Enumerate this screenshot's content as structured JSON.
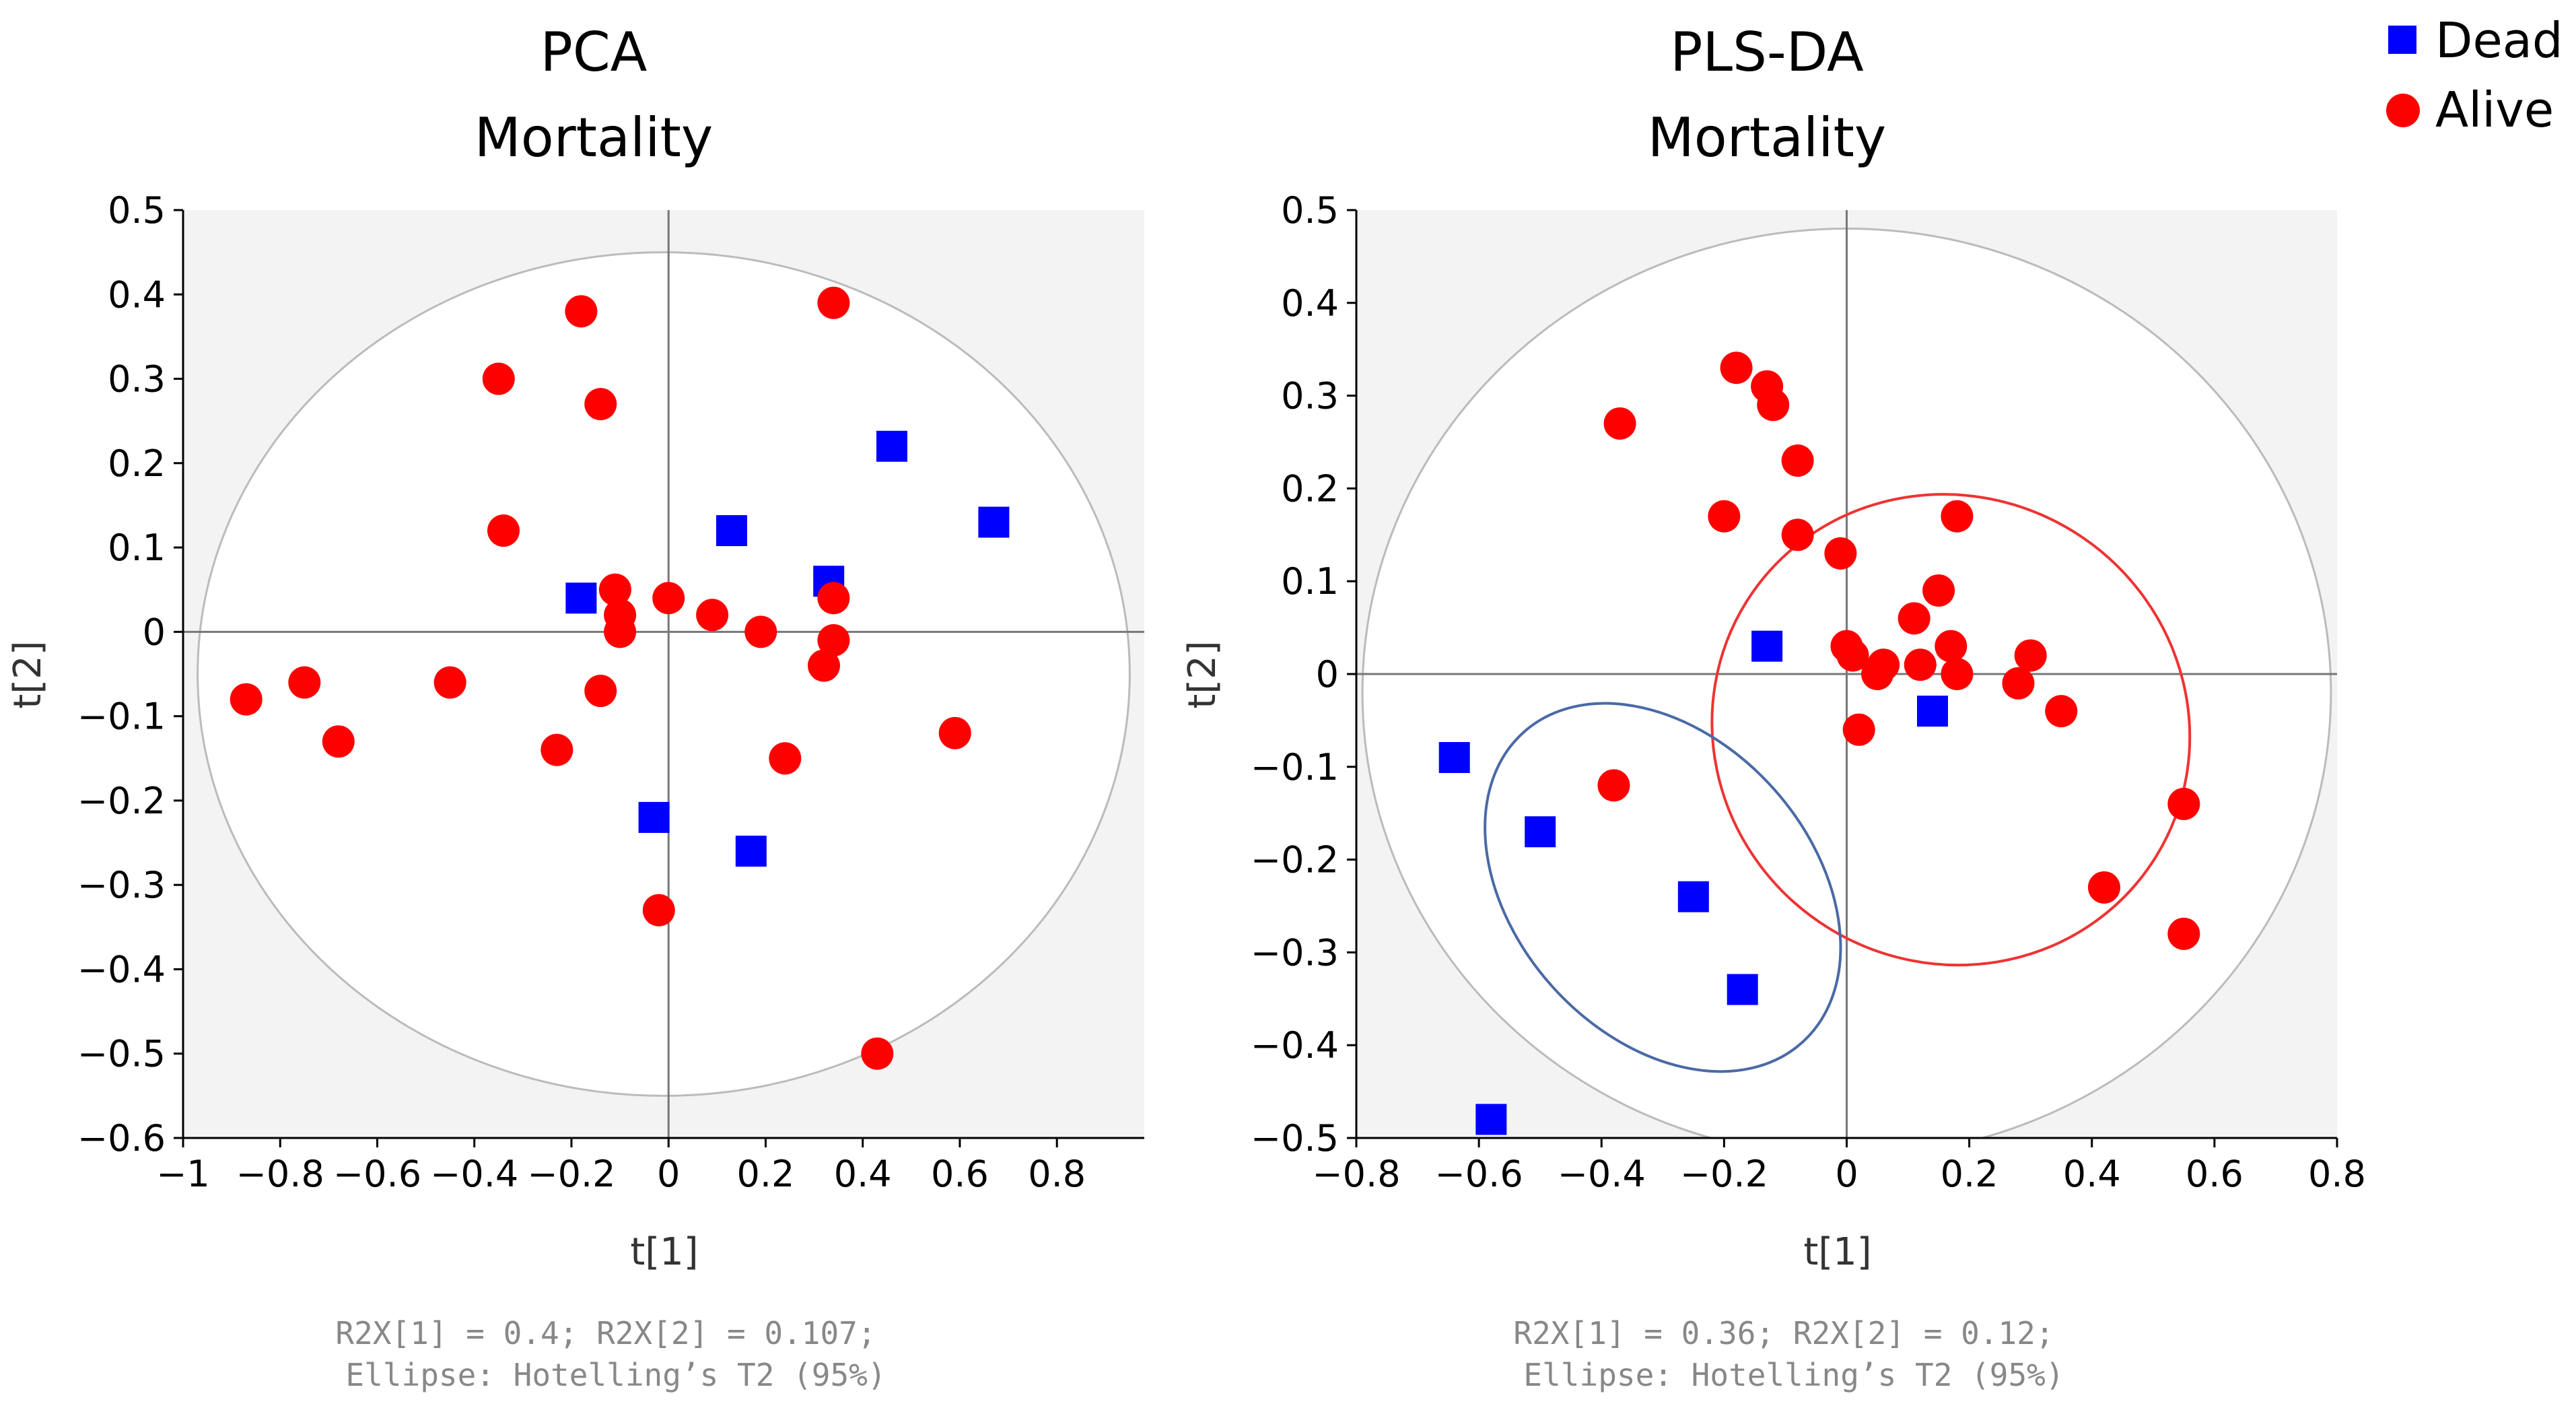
{
  "legend": {
    "items": [
      {
        "label": "Dead",
        "marker": "square",
        "color": "#0000ff"
      },
      {
        "label": "Alive",
        "marker": "circle",
        "color": "#ff0000"
      }
    ]
  },
  "colors": {
    "dead": "#0000ff",
    "alive": "#ff0000",
    "plot_bg": "#f3f3f3",
    "circle": "#bbbbbb",
    "axis": "#777777",
    "ellipse_alive": "#ee3333",
    "ellipse_dead": "#4a6aa6"
  },
  "chart_data": [
    {
      "id": "pca",
      "type": "scatter",
      "title": "PCA",
      "subtitle": "Mortality",
      "xlabel": "t[1]",
      "ylabel": "t[2]",
      "xlim": [
        -1,
        0.98
      ],
      "ylim": [
        -0.6,
        0.5
      ],
      "xticks": [
        -1,
        -0.8,
        -0.6,
        -0.4,
        -0.2,
        0,
        0.2,
        0.4,
        0.6,
        0.8
      ],
      "xtick_labels": [
        "−1",
        "−0.8",
        "−0.6",
        "−0.4",
        "−0.2",
        "0",
        "0.2",
        "0.4",
        "0.6",
        "0.8"
      ],
      "yticks": [
        0.5,
        0.4,
        0.3,
        0.2,
        0.1,
        0,
        -0.1,
        -0.2,
        -0.3,
        -0.4,
        -0.5,
        -0.6
      ],
      "ytick_labels": [
        "0.5",
        "0.4",
        "0.3",
        "0.2",
        "0.1",
        "0",
        "−0.1",
        "−0.2",
        "−0.3",
        "−0.4",
        "−0.5",
        "−0.6"
      ],
      "caption_line1": "R2X[1] = 0.4; R2X[2] = 0.107;",
      "caption_line2": "Ellipse: Hotelling’s T2 (95%)",
      "hotelling": {
        "cx": -0.01,
        "cy": -0.05,
        "rx": 0.96,
        "ry": 0.5
      },
      "series": [
        {
          "name": "Dead",
          "points": [
            [
              -0.18,
              0.04
            ],
            [
              0.13,
              0.12
            ],
            [
              0.33,
              0.06
            ],
            [
              0.46,
              0.22
            ],
            [
              0.67,
              0.13
            ],
            [
              -0.03,
              -0.22
            ],
            [
              0.17,
              -0.26
            ]
          ]
        },
        {
          "name": "Alive",
          "points": [
            [
              -0.18,
              0.38
            ],
            [
              0.34,
              0.39
            ],
            [
              -0.35,
              0.3
            ],
            [
              -0.14,
              0.27
            ],
            [
              -0.34,
              0.12
            ],
            [
              -0.11,
              0.05
            ],
            [
              -0.1,
              0.02
            ],
            [
              -0.1,
              0.0
            ],
            [
              0.0,
              0.04
            ],
            [
              0.09,
              0.02
            ],
            [
              0.19,
              0.0
            ],
            [
              0.34,
              0.04
            ],
            [
              0.34,
              -0.01
            ],
            [
              0.32,
              -0.04
            ],
            [
              -0.87,
              -0.08
            ],
            [
              -0.75,
              -0.06
            ],
            [
              -0.68,
              -0.13
            ],
            [
              -0.45,
              -0.06
            ],
            [
              -0.14,
              -0.07
            ],
            [
              -0.23,
              -0.14
            ],
            [
              0.24,
              -0.15
            ],
            [
              0.59,
              -0.12
            ],
            [
              -0.02,
              -0.33
            ],
            [
              0.43,
              -0.5
            ]
          ]
        }
      ]
    },
    {
      "id": "plsda",
      "type": "scatter",
      "title": "PLS-DA",
      "subtitle": "Mortality",
      "xlabel": "t[1]",
      "ylabel": "t[2]",
      "xlim": [
        -0.8,
        0.8
      ],
      "ylim": [
        -0.5,
        0.5
      ],
      "xticks": [
        -0.8,
        -0.6,
        -0.4,
        -0.2,
        0,
        0.2,
        0.4,
        0.6,
        0.8
      ],
      "xtick_labels": [
        "−0.8",
        "−0.6",
        "−0.4",
        "−0.2",
        "0",
        "0.2",
        "0.4",
        "0.6",
        "0.8"
      ],
      "yticks": [
        0.5,
        0.4,
        0.3,
        0.2,
        0.1,
        0,
        -0.1,
        -0.2,
        -0.3,
        -0.4,
        -0.5
      ],
      "ytick_labels": [
        "0.5",
        "0.4",
        "0.3",
        "0.2",
        "0.1",
        "0",
        "−0.1",
        "−0.2",
        "−0.3",
        "−0.4",
        "−0.5"
      ],
      "caption_line1": "R2X[1] = 0.36; R2X[2] = 0.12;",
      "caption_line2": "Ellipse: Hotelling’s T2 (95%)",
      "hotelling": {
        "cx": 0.0,
        "cy": -0.02,
        "rx": 0.79,
        "ry": 0.5
      },
      "group_ellipses": [
        {
          "name": "Alive",
          "cx": 0.17,
          "cy": -0.06,
          "rx": 0.38,
          "ry": 0.26,
          "angle_deg": -58
        },
        {
          "name": "Dead",
          "cx": -0.3,
          "cy": -0.23,
          "rx": 0.34,
          "ry": 0.16,
          "angle_deg": 48
        }
      ],
      "series": [
        {
          "name": "Dead",
          "points": [
            [
              -0.64,
              -0.09
            ],
            [
              -0.5,
              -0.17
            ],
            [
              -0.25,
              -0.24
            ],
            [
              -0.17,
              -0.34
            ],
            [
              -0.58,
              -0.48
            ],
            [
              -0.13,
              0.03
            ],
            [
              0.14,
              -0.04
            ]
          ]
        },
        {
          "name": "Alive",
          "points": [
            [
              -0.18,
              0.33
            ],
            [
              -0.13,
              0.31
            ],
            [
              -0.12,
              0.29
            ],
            [
              -0.37,
              0.27
            ],
            [
              -0.08,
              0.23
            ],
            [
              -0.2,
              0.17
            ],
            [
              -0.08,
              0.15
            ],
            [
              -0.01,
              0.13
            ],
            [
              0.18,
              0.17
            ],
            [
              0.15,
              0.09
            ],
            [
              0.11,
              0.06
            ],
            [
              0.17,
              0.03
            ],
            [
              0.0,
              0.03
            ],
            [
              0.01,
              0.02
            ],
            [
              0.06,
              0.01
            ],
            [
              0.05,
              0.0
            ],
            [
              0.12,
              0.01
            ],
            [
              0.18,
              0.0
            ],
            [
              0.3,
              0.02
            ],
            [
              0.28,
              -0.01
            ],
            [
              0.35,
              -0.04
            ],
            [
              0.02,
              -0.06
            ],
            [
              -0.38,
              -0.12
            ],
            [
              0.55,
              -0.14
            ],
            [
              0.42,
              -0.23
            ],
            [
              0.55,
              -0.28
            ]
          ]
        }
      ]
    }
  ]
}
